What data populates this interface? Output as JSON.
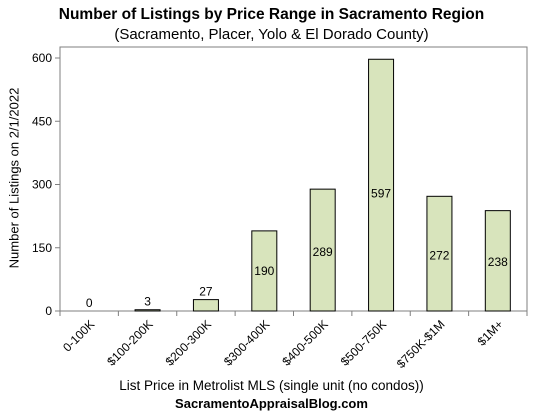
{
  "chart_data": {
    "type": "bar",
    "title": "Number of Listings by Price Range in Sacramento Region",
    "subtitle": "(Sacramento, Placer, Yolo & El Dorado County)",
    "xlabel": "List Price in Metrolist MLS (single unit (no condos))",
    "ylabel": "Number of Listings on 2/1/2022",
    "categories": [
      "0-100K",
      "$100-200K",
      "$200-300K",
      "$300-400K",
      "$400-500K",
      "$500-750K",
      "$750K-$1M",
      "$1M+"
    ],
    "values": [
      0,
      3,
      27,
      190,
      289,
      597,
      272,
      238
    ],
    "data_labels": [
      "0",
      "3",
      "27",
      "190",
      "289",
      "597",
      "272",
      "238"
    ],
    "ylim": [
      0,
      600
    ],
    "yticks": [
      0,
      150,
      300,
      450,
      600
    ],
    "ytick_labels": [
      "0",
      "150",
      "300",
      "450",
      "600"
    ],
    "grid": false,
    "legend": "none",
    "bar_color": "#d8e4bc",
    "bar_edge_color": "#000000"
  },
  "footer": "SacramentoAppraisalBlog.com"
}
